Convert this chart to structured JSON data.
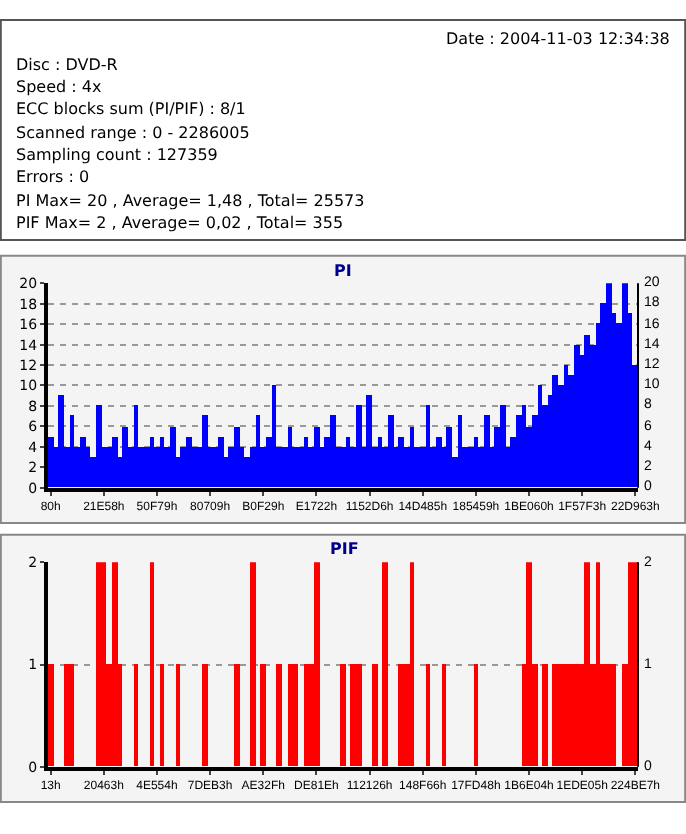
{
  "chart_data": [
    {
      "type": "other",
      "annotations": [
        "Date : 2004-11-03 12:34:38",
        "Disc : DVD-R",
        "Speed : 4x",
        "ECC blocks sum (PI/PIF) : 8/1",
        "Scanned range : 0 - 2286005",
        "Sampling count : 127359",
        "Errors : 0",
        "PI Max= 20 , Average= 1,48 , Total= 25573",
        "PIF Max= 2 , Average= 0,02 , Total= 355"
      ]
    },
    {
      "type": "bar",
      "title": "PI",
      "categories": [
        "80h",
        null,
        null,
        null,
        null,
        null,
        null,
        null,
        null,
        null,
        "21E58h",
        null,
        null,
        null,
        null,
        null,
        null,
        null,
        null,
        null,
        "50F79h",
        null,
        null,
        null,
        null,
        null,
        null,
        null,
        null,
        null,
        "80709h",
        null,
        null,
        null,
        null,
        null,
        null,
        null,
        null,
        null,
        "B0F29h",
        null,
        null,
        null,
        null,
        null,
        null,
        null,
        null,
        null,
        "E1722h",
        null,
        null,
        null,
        null,
        null,
        null,
        null,
        null,
        null,
        "1152D6h",
        null,
        null,
        null,
        null,
        null,
        null,
        null,
        null,
        null,
        "14D485h",
        null,
        null,
        null,
        null,
        null,
        null,
        null,
        null,
        null,
        "185459h",
        null,
        null,
        null,
        null,
        null,
        null,
        null,
        null,
        null,
        "1BE060h",
        null,
        null,
        null,
        null,
        null,
        null,
        null,
        null,
        null,
        "1F57F3h",
        null,
        null,
        null,
        null,
        null,
        null,
        null,
        null,
        null,
        "22D963h"
      ],
      "series": [
        {
          "color": "#0000ff",
          "values": [
            5,
            4,
            9,
            4,
            7,
            4,
            5,
            4,
            3,
            8,
            4,
            4,
            5,
            3,
            6,
            4,
            8,
            4,
            4,
            5,
            4,
            5,
            4,
            6,
            3,
            4,
            5,
            4,
            4,
            7,
            4,
            4,
            5,
            3,
            4,
            6,
            4,
            3,
            4,
            7,
            4,
            5,
            10,
            4,
            4,
            6,
            4,
            4,
            5,
            4,
            6,
            4,
            5,
            7,
            4,
            4,
            5,
            4,
            8,
            4,
            9,
            4,
            5,
            4,
            7,
            4,
            5,
            4,
            6,
            4,
            4,
            8,
            4,
            5,
            4,
            6,
            3,
            7,
            4,
            4,
            5,
            4,
            7,
            4,
            6,
            8,
            4,
            5,
            7,
            8,
            6,
            7,
            10,
            8,
            9,
            11,
            10,
            12,
            11,
            14,
            13,
            15,
            14,
            16,
            18,
            20,
            17,
            16,
            20,
            17,
            12
          ]
        }
      ],
      "ylim": [
        0,
        20
      ],
      "yticks": [
        0,
        2,
        4,
        6,
        8,
        10,
        12,
        14,
        16,
        18,
        20
      ],
      "y2lim": [
        0,
        20
      ],
      "y2ticks": [
        0,
        2,
        4,
        6,
        8,
        10,
        12,
        14,
        16,
        18,
        20
      ],
      "grid": "y"
    },
    {
      "type": "bar",
      "title": "PIF",
      "categories": [
        "13h",
        null,
        null,
        null,
        null,
        null,
        null,
        null,
        null,
        null,
        "20463h",
        null,
        null,
        null,
        null,
        null,
        null,
        null,
        null,
        null,
        "4E554h",
        null,
        null,
        null,
        null,
        null,
        null,
        null,
        null,
        null,
        "7DEB3h",
        null,
        null,
        null,
        null,
        null,
        null,
        null,
        null,
        null,
        "AE32Fh",
        null,
        null,
        null,
        null,
        null,
        null,
        null,
        null,
        null,
        "DE81Eh",
        null,
        null,
        null,
        null,
        null,
        null,
        null,
        null,
        null,
        "112126h",
        null,
        null,
        null,
        null,
        null,
        null,
        null,
        null,
        null,
        "148F66h",
        null,
        null,
        null,
        null,
        null,
        null,
        null,
        null,
        null,
        "17FD48h",
        null,
        null,
        null,
        null,
        null,
        null,
        null,
        null,
        null,
        "1B6E04h",
        null,
        null,
        null,
        null,
        null,
        null,
        null,
        null,
        null,
        "1EDE05h",
        null,
        null,
        null,
        null,
        null,
        null,
        null,
        null,
        null,
        "224BE7h"
      ],
      "series": [
        {
          "color": "#ff0000",
          "values": [
            1,
            0,
            0,
            1,
            1,
            0,
            0,
            0,
            0,
            2,
            2,
            1,
            2,
            1,
            0,
            0,
            1,
            0,
            0,
            2,
            0,
            1,
            0,
            0,
            1,
            0,
            0,
            0,
            0,
            1,
            0,
            0,
            0,
            0,
            0,
            1,
            0,
            0,
            2,
            0,
            1,
            0,
            0,
            1,
            0,
            1,
            1,
            0,
            1,
            1,
            2,
            0,
            0,
            0,
            0,
            1,
            0,
            1,
            1,
            0,
            0,
            1,
            0,
            2,
            0,
            0,
            1,
            1,
            2,
            0,
            0,
            1,
            0,
            0,
            1,
            0,
            0,
            0,
            0,
            0,
            1,
            0,
            0,
            0,
            0,
            0,
            0,
            0,
            0,
            1,
            2,
            1,
            0,
            1,
            0,
            1,
            1,
            1,
            1,
            1,
            1,
            2,
            1,
            2,
            1,
            1,
            1,
            0,
            1,
            2,
            2
          ]
        }
      ],
      "ylim": [
        0,
        2
      ],
      "yticks": [
        0,
        1,
        2
      ],
      "y2lim": [
        0,
        2
      ],
      "y2ticks": [
        0,
        1,
        2
      ],
      "grid": "y"
    }
  ]
}
